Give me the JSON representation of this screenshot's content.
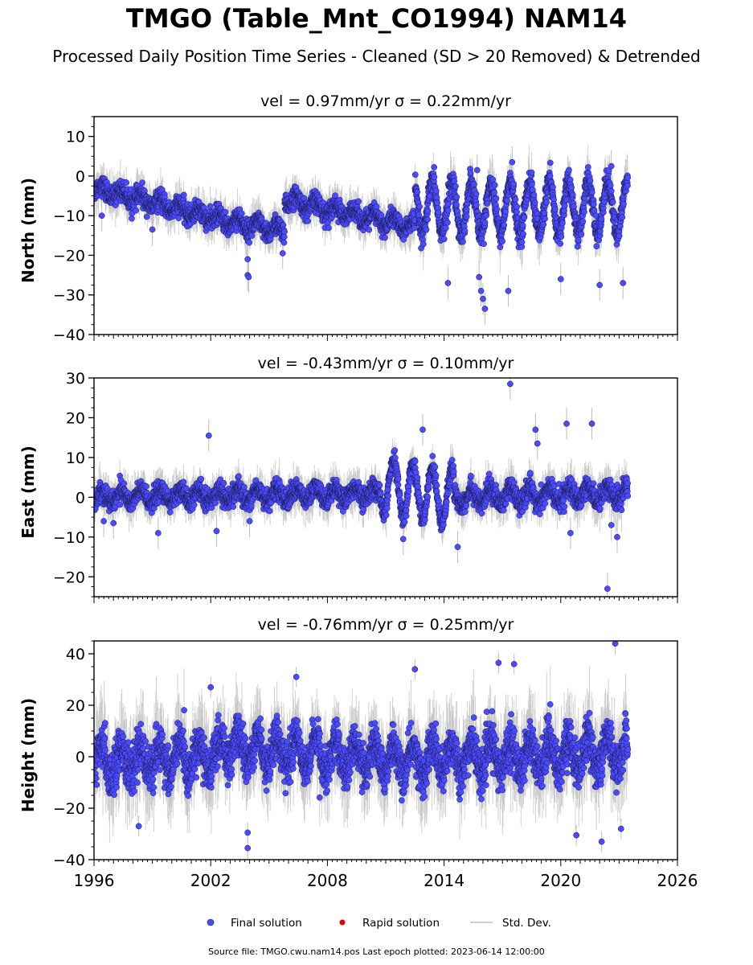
{
  "title": "TMGO (Table_Mnt_CO1994) NAM14",
  "subtitle": "Processed Daily Position Time Series - Cleaned (SD > 20 Removed) & Detrended",
  "source_note": "Source file: TMGO.cwu.nam14.pos  Last epoch plotted: 2023-06-14 12:00:00",
  "legend": {
    "final": "Final solution",
    "rapid": "Rapid solution",
    "stddev": "Std. Dev."
  },
  "colors": {
    "final_fill": "#4a4aff",
    "final_edge": "#1a1a4a",
    "rapid": "#e00000",
    "stddev": "#bdbdbd"
  },
  "chart_data": [
    {
      "type": "scatter",
      "title": "vel = 0.97mm/yr   σ = 0.22mm/yr",
      "ylabel": "North (mm)",
      "xlim": [
        1996,
        2026
      ],
      "ylim": [
        -40,
        15
      ],
      "yticks": [
        10,
        0,
        -10,
        -20,
        -30,
        -40
      ],
      "ytick_labels": [
        "10",
        "0",
        "−10",
        "−20",
        "−30",
        "−40"
      ],
      "x_range_data": [
        1996.0,
        2023.45
      ],
      "segments": [
        {
          "x0": 1996.0,
          "y0": -3,
          "x1": 2002.5,
          "y1": -11,
          "amp": 1.2,
          "noise": 2.0
        },
        {
          "x0": 2002.5,
          "y0": -11,
          "x1": 2005.8,
          "y1": -14,
          "amp": 1.5,
          "noise": 2.0
        },
        {
          "x0": 2005.8,
          "y0": -6,
          "x1": 2012.5,
          "y1": -13,
          "amp": 1.5,
          "noise": 2.0
        },
        {
          "x0": 2012.5,
          "y0": -8,
          "x1": 2023.45,
          "y1": -8,
          "amp": 6.5,
          "noise": 2.5
        }
      ],
      "outliers": [
        {
          "x": 2003.9,
          "y": -21
        },
        {
          "x": 2003.9,
          "y": -25
        },
        {
          "x": 2003.95,
          "y": -25.5
        },
        {
          "x": 2005.7,
          "y": -19.5
        },
        {
          "x": 1996.4,
          "y": -10
        },
        {
          "x": 1999.0,
          "y": -13.5
        },
        {
          "x": 2014.2,
          "y": -27
        },
        {
          "x": 2015.8,
          "y": -25.5
        },
        {
          "x": 2015.9,
          "y": -29
        },
        {
          "x": 2016.0,
          "y": -31
        },
        {
          "x": 2016.1,
          "y": -33.5
        },
        {
          "x": 2017.3,
          "y": -29
        },
        {
          "x": 2017.5,
          "y": 3.5
        },
        {
          "x": 2015.7,
          "y": 1.5
        },
        {
          "x": 2022.0,
          "y": -27.5
        },
        {
          "x": 2023.2,
          "y": -27
        },
        {
          "x": 2022.6,
          "y": 2.5
        },
        {
          "x": 2020.0,
          "y": -26
        }
      ]
    },
    {
      "type": "scatter",
      "title": "vel = -0.43mm/yr   σ = 0.10mm/yr",
      "ylabel": "East (mm)",
      "xlim": [
        1996,
        2026
      ],
      "ylim": [
        -25,
        30
      ],
      "yticks": [
        30,
        20,
        10,
        0,
        -10,
        -20
      ],
      "ytick_labels": [
        "30",
        "20",
        "10",
        "0",
        "−10",
        "−20"
      ],
      "x_range_data": [
        1996.0,
        2023.45
      ],
      "segments": [
        {
          "x0": 1996.0,
          "y0": 0,
          "x1": 2010.7,
          "y1": 1,
          "amp": 1.5,
          "noise": 2.0
        },
        {
          "x0": 2010.7,
          "y0": 3,
          "x1": 2014.5,
          "y1": 0,
          "amp": 6.5,
          "noise": 2.0
        },
        {
          "x0": 2014.5,
          "y0": 0,
          "x1": 2023.45,
          "y1": 1,
          "amp": 2.0,
          "noise": 2.2
        }
      ],
      "outliers": [
        {
          "x": 2001.9,
          "y": 15.5
        },
        {
          "x": 2002.3,
          "y": -8.5
        },
        {
          "x": 2017.4,
          "y": 28.5
        },
        {
          "x": 2020.3,
          "y": 18.5
        },
        {
          "x": 2021.6,
          "y": 18.5
        },
        {
          "x": 2012.9,
          "y": 17
        },
        {
          "x": 2011.9,
          "y": -10.5
        },
        {
          "x": 2014.7,
          "y": -12.5
        },
        {
          "x": 2022.4,
          "y": -23
        },
        {
          "x": 2022.9,
          "y": -10
        },
        {
          "x": 2022.6,
          "y": -7
        },
        {
          "x": 2020.5,
          "y": -9
        },
        {
          "x": 1999.3,
          "y": -9
        },
        {
          "x": 2004.0,
          "y": -6
        },
        {
          "x": 2018.7,
          "y": 17
        },
        {
          "x": 2018.8,
          "y": 13.5
        },
        {
          "x": 1996.5,
          "y": -6
        },
        {
          "x": 1997.0,
          "y": -6.5
        }
      ]
    },
    {
      "type": "scatter",
      "title": "vel = -0.76mm/yr   σ = 0.25mm/yr",
      "ylabel": "Height (mm)",
      "xlim": [
        1996,
        2026
      ],
      "ylim": [
        -40,
        45
      ],
      "yticks": [
        40,
        20,
        0,
        -20,
        -40
      ],
      "ytick_labels": [
        "40",
        "20",
        "0",
        "−20",
        "−40"
      ],
      "xticks": [
        1996,
        2002,
        2008,
        2014,
        2020,
        2026
      ],
      "xtick_labels": [
        "1996",
        "2002",
        "2008",
        "2014",
        "2020",
        "2026"
      ],
      "x_range_data": [
        1996.0,
        2023.45
      ],
      "segments": [
        {
          "x0": 1996.0,
          "y0": -2,
          "x1": 2002.5,
          "y1": 0,
          "amp": 6,
          "noise": 7
        },
        {
          "x0": 2002.5,
          "y0": 4,
          "x1": 2013.0,
          "y1": -2,
          "amp": 6,
          "noise": 6.5
        },
        {
          "x0": 2013.0,
          "y0": -1,
          "x1": 2023.45,
          "y1": 2,
          "amp": 6,
          "noise": 7
        }
      ],
      "outliers": [
        {
          "x": 2003.9,
          "y": -29.5
        },
        {
          "x": 2003.9,
          "y": -35.5
        },
        {
          "x": 2006.4,
          "y": 31
        },
        {
          "x": 2012.5,
          "y": 34
        },
        {
          "x": 2016.8,
          "y": 36.5
        },
        {
          "x": 2017.6,
          "y": 36
        },
        {
          "x": 2022.8,
          "y": 44
        },
        {
          "x": 2022.1,
          "y": -33
        },
        {
          "x": 2023.1,
          "y": -28
        },
        {
          "x": 2020.8,
          "y": -30.5
        },
        {
          "x": 1998.3,
          "y": -27
        },
        {
          "x": 2002.0,
          "y": 27
        }
      ]
    }
  ]
}
